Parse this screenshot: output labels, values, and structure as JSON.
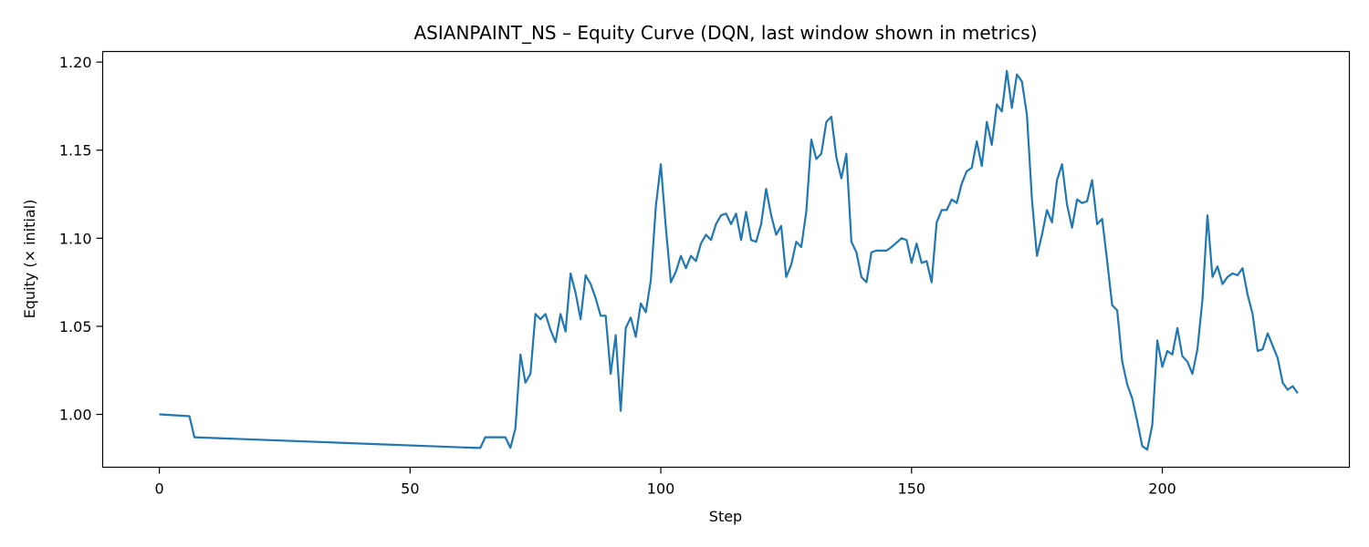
{
  "chart_data": {
    "type": "line",
    "title": "ASIANPAINT_NS – Equity Curve (DQN, last window shown in metrics)",
    "xlabel": "Step",
    "ylabel": "Equity (× initial)",
    "xlim": [
      -11.3,
      237.3
    ],
    "ylim": [
      0.97,
      1.206
    ],
    "x_ticks": [
      0,
      50,
      100,
      150,
      200
    ],
    "x_tick_labels": [
      "0",
      "50",
      "100",
      "150",
      "200"
    ],
    "y_ticks": [
      1.0,
      1.05,
      1.1,
      1.15,
      1.2
    ],
    "y_tick_labels": [
      "1.00",
      "1.05",
      "1.10",
      "1.15",
      "1.20"
    ],
    "grid": false,
    "legend": "none",
    "series": [
      {
        "color": "#1f77b4",
        "points": [
          [
            0,
            1.0
          ],
          [
            6,
            0.999
          ],
          [
            7,
            0.987
          ],
          [
            63,
            0.981
          ],
          [
            64,
            0.981
          ],
          [
            65,
            0.987
          ],
          [
            69,
            0.987
          ],
          [
            70,
            0.981
          ],
          [
            71,
            0.992
          ],
          [
            72,
            1.034
          ],
          [
            73,
            1.018
          ],
          [
            74,
            1.023
          ],
          [
            75,
            1.057
          ],
          [
            76,
            1.054
          ],
          [
            77,
            1.057
          ],
          [
            78,
            1.048
          ],
          [
            79,
            1.041
          ],
          [
            80,
            1.057
          ],
          [
            81,
            1.047
          ],
          [
            82,
            1.08
          ],
          [
            83,
            1.069
          ],
          [
            84,
            1.054
          ],
          [
            85,
            1.079
          ],
          [
            86,
            1.074
          ],
          [
            87,
            1.066
          ],
          [
            88,
            1.056
          ],
          [
            89,
            1.056
          ],
          [
            90,
            1.023
          ],
          [
            91,
            1.045
          ],
          [
            92,
            1.002
          ],
          [
            93,
            1.049
          ],
          [
            94,
            1.055
          ],
          [
            95,
            1.044
          ],
          [
            96,
            1.063
          ],
          [
            97,
            1.058
          ],
          [
            98,
            1.076
          ],
          [
            99,
            1.118
          ],
          [
            100,
            1.142
          ],
          [
            101,
            1.106
          ],
          [
            102,
            1.075
          ],
          [
            103,
            1.081
          ],
          [
            104,
            1.09
          ],
          [
            105,
            1.083
          ],
          [
            106,
            1.09
          ],
          [
            107,
            1.087
          ],
          [
            108,
            1.097
          ],
          [
            109,
            1.102
          ],
          [
            110,
            1.099
          ],
          [
            111,
            1.108
          ],
          [
            112,
            1.113
          ],
          [
            113,
            1.114
          ],
          [
            114,
            1.108
          ],
          [
            115,
            1.114
          ],
          [
            116,
            1.099
          ],
          [
            117,
            1.115
          ],
          [
            118,
            1.099
          ],
          [
            119,
            1.098
          ],
          [
            120,
            1.108
          ],
          [
            121,
            1.128
          ],
          [
            122,
            1.113
          ],
          [
            123,
            1.102
          ],
          [
            124,
            1.107
          ],
          [
            125,
            1.078
          ],
          [
            126,
            1.085
          ],
          [
            127,
            1.098
          ],
          [
            128,
            1.095
          ],
          [
            129,
            1.115
          ],
          [
            130,
            1.156
          ],
          [
            131,
            1.145
          ],
          [
            132,
            1.148
          ],
          [
            133,
            1.166
          ],
          [
            134,
            1.169
          ],
          [
            135,
            1.146
          ],
          [
            136,
            1.134
          ],
          [
            137,
            1.148
          ],
          [
            138,
            1.098
          ],
          [
            139,
            1.092
          ],
          [
            140,
            1.078
          ],
          [
            141,
            1.075
          ],
          [
            142,
            1.092
          ],
          [
            143,
            1.093
          ],
          [
            145,
            1.093
          ],
          [
            146,
            1.095
          ],
          [
            148,
            1.1
          ],
          [
            149,
            1.099
          ],
          [
            150,
            1.086
          ],
          [
            151,
            1.097
          ],
          [
            152,
            1.086
          ],
          [
            153,
            1.087
          ],
          [
            154,
            1.075
          ],
          [
            155,
            1.109
          ],
          [
            156,
            1.116
          ],
          [
            157,
            1.116
          ],
          [
            158,
            1.122
          ],
          [
            159,
            1.12
          ],
          [
            160,
            1.131
          ],
          [
            161,
            1.138
          ],
          [
            162,
            1.14
          ],
          [
            163,
            1.155
          ],
          [
            164,
            1.141
          ],
          [
            165,
            1.166
          ],
          [
            166,
            1.153
          ],
          [
            167,
            1.176
          ],
          [
            168,
            1.172
          ],
          [
            169,
            1.195
          ],
          [
            170,
            1.174
          ],
          [
            171,
            1.193
          ],
          [
            172,
            1.189
          ],
          [
            173,
            1.17
          ],
          [
            174,
            1.122
          ],
          [
            175,
            1.09
          ],
          [
            176,
            1.102
          ],
          [
            177,
            1.116
          ],
          [
            178,
            1.109
          ],
          [
            179,
            1.133
          ],
          [
            180,
            1.142
          ],
          [
            181,
            1.119
          ],
          [
            182,
            1.106
          ],
          [
            183,
            1.122
          ],
          [
            184,
            1.12
          ],
          [
            185,
            1.121
          ],
          [
            186,
            1.133
          ],
          [
            187,
            1.108
          ],
          [
            188,
            1.111
          ],
          [
            189,
            1.087
          ],
          [
            190,
            1.062
          ],
          [
            191,
            1.059
          ],
          [
            192,
            1.03
          ],
          [
            193,
            1.017
          ],
          [
            194,
            1.009
          ],
          [
            195,
            0.996
          ],
          [
            196,
            0.982
          ],
          [
            197,
            0.98
          ],
          [
            198,
            0.994
          ],
          [
            199,
            1.042
          ],
          [
            200,
            1.027
          ],
          [
            201,
            1.036
          ],
          [
            202,
            1.034
          ],
          [
            203,
            1.049
          ],
          [
            204,
            1.033
          ],
          [
            205,
            1.03
          ],
          [
            206,
            1.023
          ],
          [
            207,
            1.037
          ],
          [
            208,
            1.065
          ],
          [
            209,
            1.113
          ],
          [
            210,
            1.078
          ],
          [
            211,
            1.084
          ],
          [
            212,
            1.074
          ],
          [
            213,
            1.078
          ],
          [
            214,
            1.08
          ],
          [
            215,
            1.079
          ],
          [
            216,
            1.083
          ],
          [
            217,
            1.068
          ],
          [
            218,
            1.057
          ],
          [
            219,
            1.036
          ],
          [
            220,
            1.037
          ],
          [
            221,
            1.046
          ],
          [
            222,
            1.039
          ],
          [
            223,
            1.032
          ],
          [
            224,
            1.018
          ],
          [
            225,
            1.014
          ],
          [
            226,
            1.016
          ],
          [
            227,
            1.012
          ]
        ]
      }
    ]
  }
}
